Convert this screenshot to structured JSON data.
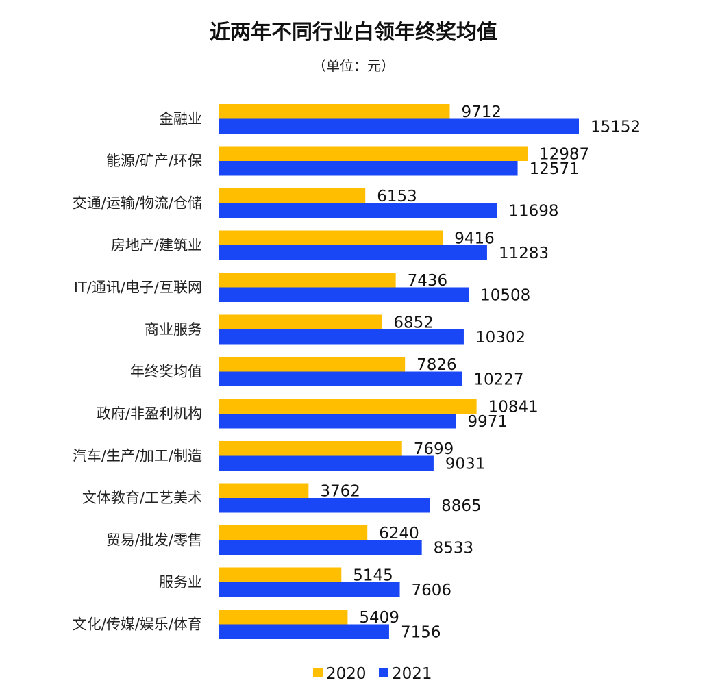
{
  "chart_data": {
    "type": "bar",
    "orientation": "horizontal",
    "title": "近两年不同行业白领年终奖均值",
    "subtitle": "（单位：元）",
    "categories": [
      "金融业",
      "能源/矿产/环保",
      "交通/运输/物流/仓储",
      "房地产/建筑业",
      "IT/通讯/电子/互联网",
      "商业服务",
      "年终奖均值",
      "政府/非盈利机构",
      "汽车/生产/加工/制造",
      "文体教育/工艺美术",
      "贸易/批发/零售",
      "服务业",
      "文化/传媒/娱乐/体育"
    ],
    "series": [
      {
        "name": "2020",
        "color": "#FFBE00",
        "values": [
          9712,
          12987,
          6153,
          9416,
          7436,
          6852,
          7826,
          10841,
          7699,
          3762,
          6240,
          5145,
          5409
        ]
      },
      {
        "name": "2021",
        "color": "#1A47F5",
        "values": [
          15152,
          12571,
          11698,
          11283,
          10508,
          10302,
          10227,
          9971,
          9031,
          8865,
          8533,
          7606,
          7156
        ]
      }
    ],
    "xlim": [
      0,
      15152
    ],
    "grid": false,
    "data_labels": true,
    "legend": "bottom"
  }
}
